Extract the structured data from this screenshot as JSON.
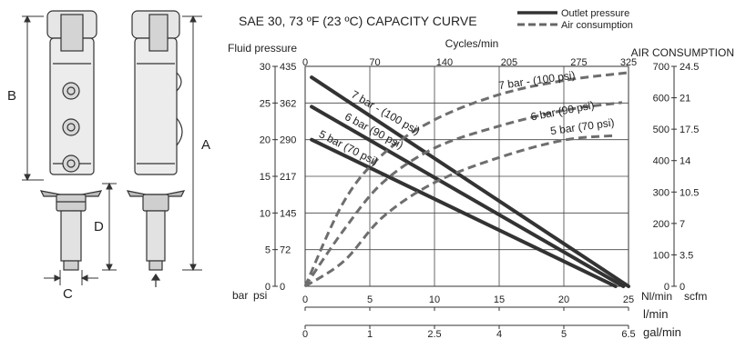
{
  "drawing": {
    "dimension_labels": {
      "a": "A",
      "b": "B",
      "c": "C",
      "d": "D"
    }
  },
  "chart_data": {
    "type": "line",
    "title": "SAE 30, 73 ºF (23 ºC) CAPACITY CURVE",
    "legend": {
      "placement": "top-right",
      "entries": [
        {
          "label": "Outlet pressure",
          "style": "solid"
        },
        {
          "label": "Air consumption",
          "style": "dashed"
        }
      ]
    },
    "grid": true,
    "axes": {
      "left": {
        "title": "Fluid pressure",
        "unit_labels": [
          "bar",
          "psi"
        ],
        "range": [
          0,
          30
        ],
        "ticks_bar": [
          0,
          5,
          10,
          15,
          20,
          25,
          30
        ],
        "ticks_psi": [
          0,
          72,
          145,
          217,
          290,
          362,
          435
        ]
      },
      "top": {
        "title": "Cycles/min",
        "range": [
          0,
          325
        ],
        "ticks": [
          0,
          70,
          140,
          205,
          275,
          325
        ]
      },
      "right": {
        "title": "AIR CONSUMPTION",
        "unit_labels": [
          "Nl/min",
          "scfm"
        ],
        "range": [
          0,
          700
        ],
        "ticks_nlmin": [
          0,
          100,
          200,
          300,
          400,
          500,
          600,
          700
        ],
        "ticks_scfm": [
          0,
          3.5,
          7,
          10.5,
          14,
          17.5,
          21,
          24.5
        ]
      },
      "bottom_lmin": {
        "title": "l/min",
        "range": [
          0,
          25
        ],
        "ticks": [
          0,
          5,
          10,
          15,
          20,
          25
        ]
      },
      "bottom_galmin": {
        "title": "gal/min",
        "ticks": [
          "0",
          "1",
          "2.5",
          "4",
          "5",
          "6.5"
        ],
        "tick_positions_lmin": [
          0,
          5,
          10,
          15,
          20,
          25
        ]
      }
    },
    "series": [
      {
        "name": "7 bar - (100 psi)",
        "kind": "outlet_pressure",
        "style": "solid",
        "x_lmin": [
          0.5,
          25
        ],
        "y_bar": [
          28.5,
          0
        ]
      },
      {
        "name": "6 bar (90 psi)",
        "kind": "outlet_pressure",
        "style": "solid",
        "x_lmin": [
          0.5,
          24.6
        ],
        "y_bar": [
          24.5,
          0
        ]
      },
      {
        "name": "5 bar (70 psi)",
        "kind": "outlet_pressure",
        "style": "solid",
        "x_lmin": [
          0.5,
          24
        ],
        "y_bar": [
          20,
          0
        ]
      },
      {
        "name": "7 bar - (100 psi)",
        "kind": "air_consumption",
        "style": "dashed",
        "x_lmin": [
          0,
          3,
          6,
          10,
          15,
          20,
          25
        ],
        "y_nlmin": [
          0,
          270,
          420,
          530,
          610,
          655,
          680
        ]
      },
      {
        "name": "6 bar (90 psi)",
        "kind": "air_consumption",
        "style": "dashed",
        "x_lmin": [
          0,
          3,
          6,
          10,
          15,
          20,
          24.5
        ],
        "y_nlmin": [
          0,
          180,
          330,
          440,
          510,
          560,
          585
        ]
      },
      {
        "name": "5 bar (70 psi)",
        "kind": "air_consumption",
        "style": "dashed",
        "x_lmin": [
          0,
          3,
          6,
          10,
          15,
          20,
          24
        ],
        "y_nlmin": [
          0,
          80,
          220,
          330,
          410,
          465,
          480
        ]
      }
    ],
    "curve_label_text": [
      {
        "text": "7 bar - (100 psi)",
        "series": 0
      },
      {
        "text": "6 bar (90 psi)",
        "series": 1
      },
      {
        "text": "5 bar (70 psi)",
        "series": 2
      },
      {
        "text": "7 bar - (100 psi)",
        "series": 3
      },
      {
        "text": "6 bar (90 psi)",
        "series": 4
      },
      {
        "text": "5 bar (70 psi)",
        "series": 5
      }
    ]
  }
}
